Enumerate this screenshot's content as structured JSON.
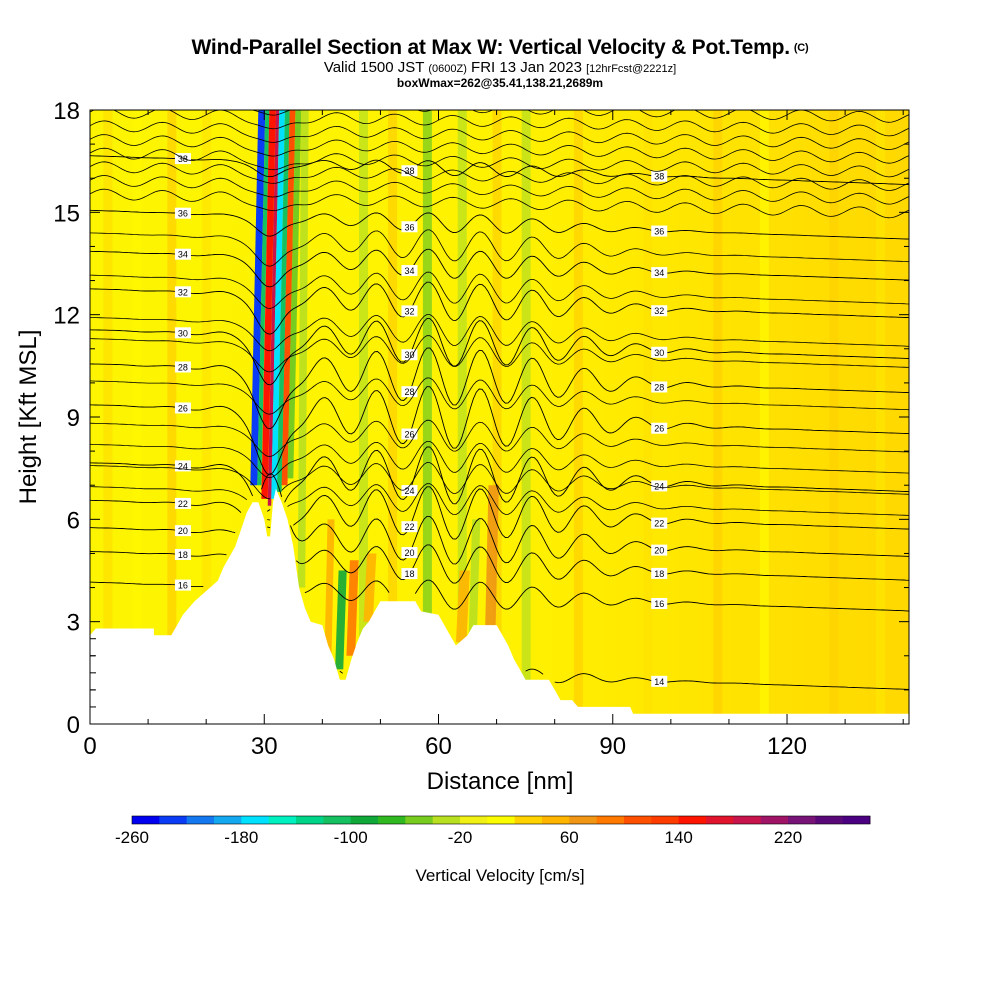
{
  "title": {
    "main": "Wind-Parallel Section at Max W: Vertical Velocity & Pot.Temp.",
    "copyright": "(C)",
    "valid_pre": "Valid 1500 JST",
    "valid_utc": "(0600Z)",
    "valid_date": "FRI 13 Jan 2023",
    "forecast": "[12hrFcst@2221z]",
    "box": "boxWmax=262@35.41,138.21,2689m"
  },
  "chart_data": {
    "type": "heatmap",
    "xlabel": "Distance [nm]",
    "ylabel": "Height [Kft MSL]",
    "xlim": [
      0,
      141
    ],
    "ylim": [
      0,
      18
    ],
    "xticks": [
      "0",
      "30",
      "60",
      "90",
      "120"
    ],
    "xtick_values": [
      0,
      30,
      60,
      90,
      120
    ],
    "yticks": [
      "0",
      "3",
      "6",
      "9",
      "12",
      "15",
      "18"
    ],
    "ytick_values": [
      0,
      3,
      6,
      9,
      12,
      15,
      18
    ],
    "terrain_profile": [
      [
        0,
        2.6
      ],
      [
        1,
        2.8
      ],
      [
        11,
        2.8
      ],
      [
        11,
        2.6
      ],
      [
        14,
        2.6
      ],
      [
        15,
        2.9
      ],
      [
        16,
        3.2
      ],
      [
        18,
        3.6
      ],
      [
        20,
        3.9
      ],
      [
        22,
        4.2
      ],
      [
        23,
        4.6
      ],
      [
        25,
        5.2
      ],
      [
        26,
        5.7
      ],
      [
        27,
        6.2
      ],
      [
        28,
        6.5
      ],
      [
        29,
        6.5
      ],
      [
        30,
        6.0
      ],
      [
        30.5,
        5.5
      ],
      [
        31,
        5.5
      ],
      [
        31.5,
        6.5
      ],
      [
        32,
        6.9
      ],
      [
        33,
        6.5
      ],
      [
        34,
        6.0
      ],
      [
        35,
        5.2
      ],
      [
        36,
        4.0
      ],
      [
        37,
        3.4
      ],
      [
        38,
        3.0
      ],
      [
        40,
        2.9
      ],
      [
        41,
        2.3
      ],
      [
        42,
        1.9
      ],
      [
        43,
        1.3
      ],
      [
        44,
        1.3
      ],
      [
        45,
        1.9
      ],
      [
        46,
        2.4
      ],
      [
        47,
        2.8
      ],
      [
        48,
        3.0
      ],
      [
        49,
        3.3
      ],
      [
        50,
        3.6
      ],
      [
        56,
        3.6
      ],
      [
        57,
        3.3
      ],
      [
        60,
        3.2
      ],
      [
        61,
        2.9
      ],
      [
        62,
        2.6
      ],
      [
        63,
        2.3
      ],
      [
        65,
        2.6
      ],
      [
        66,
        2.9
      ],
      [
        70,
        2.9
      ],
      [
        71,
        2.6
      ],
      [
        72,
        2.3
      ],
      [
        73,
        1.9
      ],
      [
        74,
        1.6
      ],
      [
        75,
        1.3
      ],
      [
        79,
        1.3
      ],
      [
        80,
        1.0
      ],
      [
        81,
        0.7
      ],
      [
        83,
        0.7
      ],
      [
        84,
        0.5
      ],
      [
        93,
        0.5
      ],
      [
        93.5,
        0.3
      ],
      [
        141,
        0.3
      ]
    ],
    "isentropes": [
      {
        "label": "14",
        "base": 1.5,
        "wave": 0.4
      },
      {
        "label": "16",
        "base": 3.8,
        "wave": 0.6
      },
      {
        "label": "18",
        "base": 4.7,
        "wave": 0.8
      },
      {
        "label": "20",
        "base": 5.4,
        "wave": 1.0
      },
      {
        "label": "22",
        "base": 6.2,
        "wave": 1.1
      },
      {
        "label": "24",
        "base": 7.3,
        "wave": 1.2
      },
      {
        "label": "26",
        "base": 9.0,
        "wave": 1.3
      },
      {
        "label": "28",
        "base": 10.2,
        "wave": 1.2
      },
      {
        "label": "30",
        "base": 11.2,
        "wave": 1.0
      },
      {
        "label": "32",
        "base": 12.4,
        "wave": 0.8
      },
      {
        "label": "34",
        "base": 13.5,
        "wave": 0.6
      },
      {
        "label": "36",
        "base": 14.7,
        "wave": 0.4
      },
      {
        "label": "38",
        "base": 16.3,
        "wave": 0.3
      }
    ],
    "colorbar": {
      "title": "Vertical Velocity [cm/s]",
      "tick_labels": [
        "-260",
        "-180",
        "-100",
        "-20",
        "60",
        "140",
        "220"
      ],
      "tick_values": [
        -260,
        -180,
        -100,
        -20,
        60,
        140,
        220
      ],
      "min": -260,
      "step": 20,
      "colors": [
        "#0000f0",
        "#0a3cf5",
        "#1478f0",
        "#14a8f0",
        "#00e0ff",
        "#00f0c0",
        "#00d488",
        "#14c060",
        "#10a838",
        "#30b820",
        "#78cc20",
        "#b8e020",
        "#f0f014",
        "#fcfc00",
        "#ffd200",
        "#ffb400",
        "#f09614",
        "#ff7800",
        "#ff5000",
        "#ff3c00",
        "#ff1400",
        "#e0142c",
        "#c8144c",
        "#a01468",
        "#781478",
        "#5a0a78",
        "#4b0082"
      ]
    }
  }
}
